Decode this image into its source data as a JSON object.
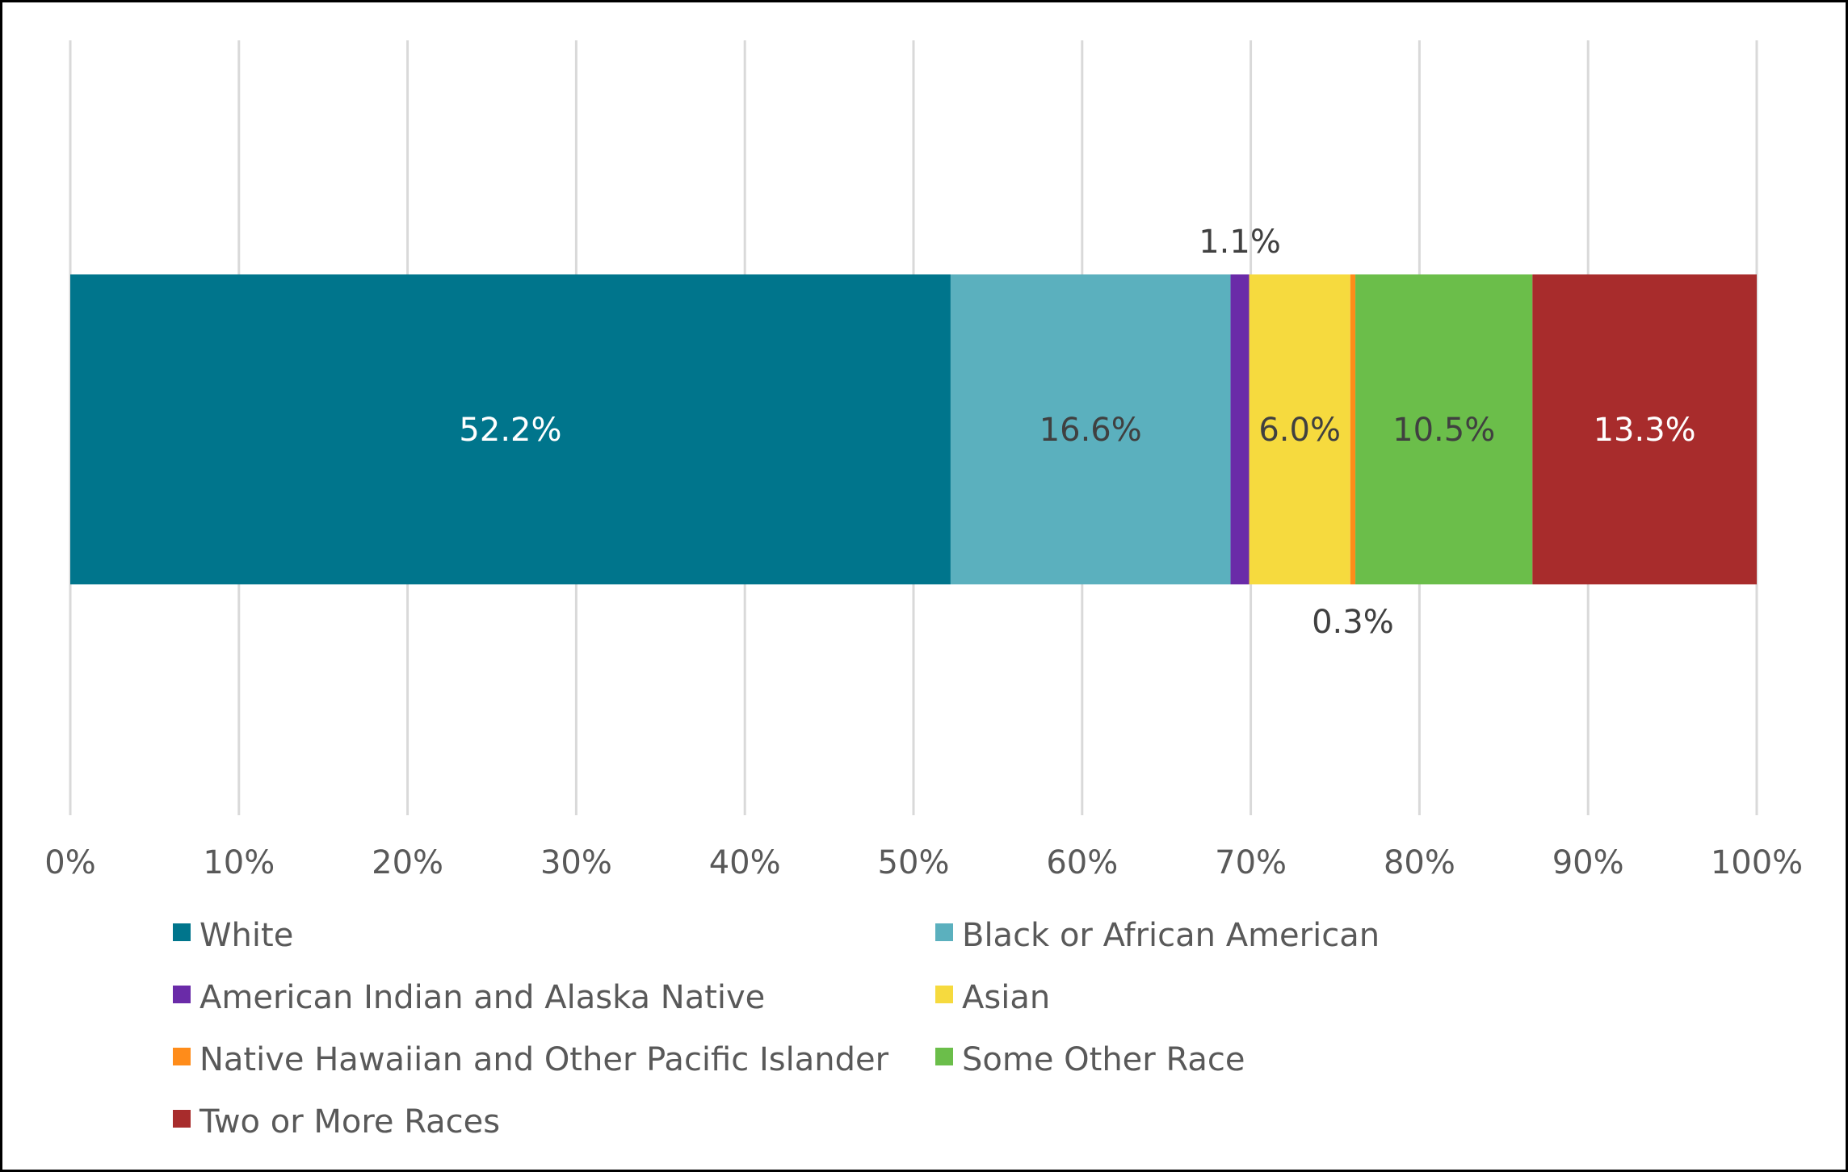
{
  "chart_data": {
    "type": "bar",
    "orientation": "horizontal",
    "stacked": true,
    "title": "",
    "xlabel": "",
    "ylabel": "",
    "xlim": [
      0,
      100
    ],
    "x_ticks": [
      "0%",
      "10%",
      "20%",
      "30%",
      "40%",
      "50%",
      "60%",
      "70%",
      "80%",
      "90%",
      "100%"
    ],
    "grid": "vertical",
    "legend_position": "bottom",
    "series": [
      {
        "name": "White",
        "value": 52.2,
        "label": "52.2%",
        "color": "#00758C",
        "label_color": "#FFFFFF",
        "label_placement": "inside"
      },
      {
        "name": "Black or African American",
        "value": 16.6,
        "label": "16.6%",
        "color": "#5BB0BE",
        "label_color": "#404040",
        "label_placement": "inside"
      },
      {
        "name": "American Indian and Alaska Native",
        "value": 1.1,
        "label": "1.1%",
        "color": "#6A2BA8",
        "label_color": "#404040",
        "label_placement": "above"
      },
      {
        "name": "Asian",
        "value": 6.0,
        "label": "6.0%",
        "color": "#F6DA3E",
        "label_color": "#404040",
        "label_placement": "inside"
      },
      {
        "name": "Native Hawaiian and Other Pacific Islander",
        "value": 0.3,
        "label": "0.3%",
        "color": "#FF8C1A",
        "label_color": "#404040",
        "label_placement": "below"
      },
      {
        "name": "Some Other Race",
        "value": 10.5,
        "label": "10.5%",
        "color": "#6BBE4A",
        "label_color": "#404040",
        "label_placement": "inside"
      },
      {
        "name": "Two or More Races",
        "value": 13.3,
        "label": "13.3%",
        "color": "#A82C2C",
        "label_color": "#FFFFFF",
        "label_placement": "inside"
      }
    ],
    "legend": [
      {
        "name": "White",
        "color": "#00758C"
      },
      {
        "name": "Black or African American",
        "color": "#5BB0BE"
      },
      {
        "name": "American Indian and Alaska Native",
        "color": "#6A2BA8"
      },
      {
        "name": "Asian",
        "color": "#F6DA3E"
      },
      {
        "name": "Native Hawaiian and Other Pacific Islander",
        "color": "#FF8C1A"
      },
      {
        "name": "Some Other Race",
        "color": "#6BBE4A"
      },
      {
        "name": "Two or More Races",
        "color": "#A82C2C"
      }
    ]
  }
}
